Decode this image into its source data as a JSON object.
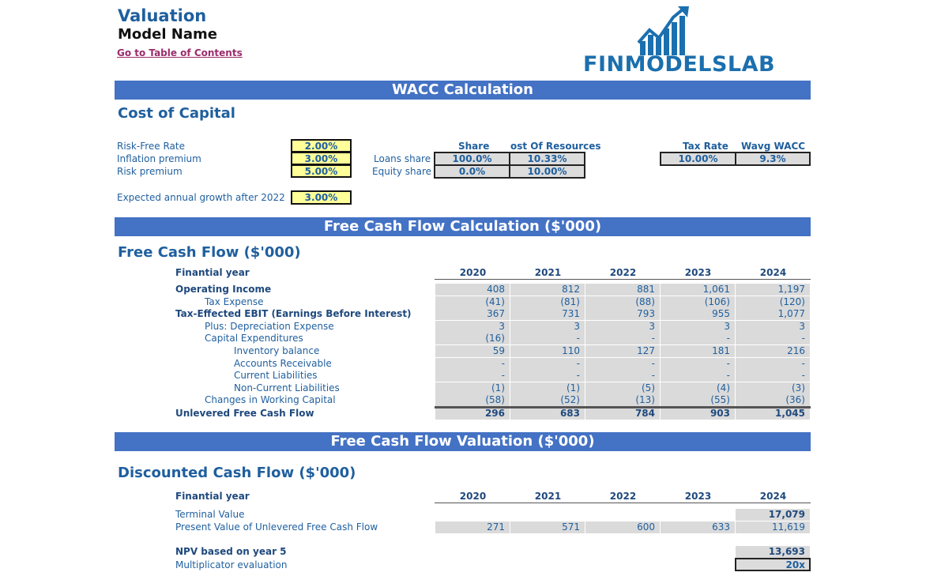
{
  "header": {
    "title": "Valuation",
    "model_name": "Model Name",
    "toc_link": "Go to Table of Contents",
    "logo_text": "FINMODELSLAB"
  },
  "wacc": {
    "bar_title": "WACC Calculation",
    "subtitle": "Cost of Capital",
    "inputs": [
      {
        "label": "Risk-Free Rate",
        "value": "2.00%"
      },
      {
        "label": "Inflation premium",
        "value": "3.00%"
      },
      {
        "label": "Risk premium",
        "value": "5.00%"
      }
    ],
    "growth_label": "Expected annual growth after 2022",
    "growth_value": "3.00%",
    "share_header": "Share",
    "cost_header": "ost Of Resources",
    "loans_label": "Loans share",
    "loans_share": "100.0%",
    "loans_cost": "10.33%",
    "equity_label": "Equity share",
    "equity_share": "0.0%",
    "equity_cost": "10.00%",
    "tax_header": "Tax Rate",
    "wacc_header": "Wavg WACC",
    "tax_value": "10.00%",
    "wacc_value": "9.3%"
  },
  "fcf": {
    "bar_title": "Free Cash Flow Calculation ($'000)",
    "subtitle": "Free Cash Flow ($'000)",
    "year_label": "Finantial year",
    "years": [
      "2020",
      "2021",
      "2022",
      "2023",
      "2024"
    ],
    "rows": [
      {
        "label": "Operating Income",
        "values": [
          "408",
          "812",
          "881",
          "1,061",
          "1,197"
        ]
      },
      {
        "label": "Tax Expense",
        "values": [
          "(41)",
          "(81)",
          "(88)",
          "(106)",
          "(120)"
        ]
      },
      {
        "label": "Tax-Effected EBIT (Earnings Before Interest)",
        "values": [
          "367",
          "731",
          "793",
          "955",
          "1,077"
        ]
      },
      {
        "label": "Plus: Depreciation Expense",
        "values": [
          "3",
          "3",
          "3",
          "3",
          "3"
        ]
      },
      {
        "label": "Capital Expenditures",
        "values": [
          "(16)",
          "-",
          "-",
          "-",
          "-"
        ]
      },
      {
        "label": "Inventory balance",
        "values": [
          "59",
          "110",
          "127",
          "181",
          "216"
        ]
      },
      {
        "label": "Accounts Receivable",
        "values": [
          "-",
          "-",
          "-",
          "-",
          "-"
        ]
      },
      {
        "label": "Current Liabilities",
        "values": [
          "-",
          "-",
          "-",
          "-",
          "-"
        ]
      },
      {
        "label": "Non-Current Liabilities",
        "values": [
          "(1)",
          "(1)",
          "(5)",
          "(4)",
          "(3)"
        ]
      },
      {
        "label": "Changes in Working Capital",
        "values": [
          "(58)",
          "(52)",
          "(13)",
          "(55)",
          "(36)"
        ]
      },
      {
        "label": "Unlevered Free Cash Flow",
        "values": [
          "296",
          "683",
          "784",
          "903",
          "1,045"
        ]
      }
    ]
  },
  "dcf": {
    "bar_title": "Free Cash Flow Valuation ($'000)",
    "subtitle": "Discounted Cash Flow ($'000)",
    "year_label": "Finantial year",
    "years": [
      "2020",
      "2021",
      "2022",
      "2023",
      "2024"
    ],
    "terminal_label": "Terminal Value",
    "terminal_value": "17,079",
    "pv_label": "Present Value of Unlevered Free Cash Flow",
    "pv_values": [
      "271",
      "571",
      "600",
      "633",
      "11,619"
    ],
    "npv_label": "NPV based on year 5",
    "npv_value": "13,693",
    "mult_label": "Multiplicator evaluation",
    "mult_value": "20x"
  }
}
